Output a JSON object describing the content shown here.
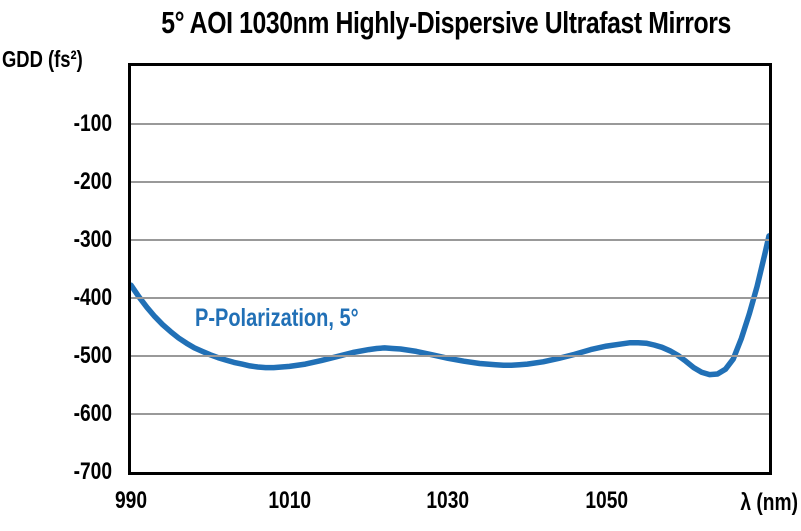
{
  "title": "5° AOI 1030nm Highly-Dispersive Ultrafast Mirrors",
  "y_axis_label": "GDD (fs²)",
  "x_axis_label": "λ (nm)",
  "series_label": "P-Polarization, 5°",
  "colors": {
    "curve": "#2170b6",
    "legend_text": "#2170b6",
    "gridline": "#999999",
    "axis_border": "#000000",
    "text": "#000000",
    "background": "#ffffff"
  },
  "chart_data": {
    "type": "line",
    "title": "5° AOI 1030nm Highly-Dispersive Ultrafast Mirrors",
    "xlabel": "λ (nm)",
    "ylabel": "GDD (fs²)",
    "xlim": [
      990,
      1070.5
    ],
    "ylim": [
      -700,
      0
    ],
    "x_ticks": [
      990,
      1010,
      1030,
      1050
    ],
    "y_ticks": [
      -100,
      -200,
      -300,
      -400,
      -500,
      -600,
      -700
    ],
    "grid": "horizontal-only",
    "legend_position": "inline-annotation",
    "series": [
      {
        "name": "P-Polarization, 5°",
        "points": [
          [
            990,
            -378
          ],
          [
            991,
            -398
          ],
          [
            992,
            -416
          ],
          [
            993,
            -432
          ],
          [
            994,
            -446
          ],
          [
            995,
            -458
          ],
          [
            996,
            -469
          ],
          [
            997,
            -478
          ],
          [
            998,
            -486
          ],
          [
            999,
            -492
          ],
          [
            1000,
            -498
          ],
          [
            1001,
            -503
          ],
          [
            1002,
            -507
          ],
          [
            1003,
            -511
          ],
          [
            1004,
            -514
          ],
          [
            1005,
            -517
          ],
          [
            1006,
            -519
          ],
          [
            1007,
            -520
          ],
          [
            1008,
            -520
          ],
          [
            1009,
            -519
          ],
          [
            1010,
            -518
          ],
          [
            1012,
            -514
          ],
          [
            1014,
            -508
          ],
          [
            1016,
            -501
          ],
          [
            1018,
            -494
          ],
          [
            1020,
            -489
          ],
          [
            1021,
            -487
          ],
          [
            1022,
            -486
          ],
          [
            1023,
            -487
          ],
          [
            1024,
            -488
          ],
          [
            1026,
            -492
          ],
          [
            1028,
            -498
          ],
          [
            1030,
            -504
          ],
          [
            1032,
            -509
          ],
          [
            1034,
            -513
          ],
          [
            1036,
            -515
          ],
          [
            1037,
            -516
          ],
          [
            1038,
            -516
          ],
          [
            1039,
            -515
          ],
          [
            1040,
            -514
          ],
          [
            1042,
            -510
          ],
          [
            1044,
            -504
          ],
          [
            1046,
            -497
          ],
          [
            1048,
            -489
          ],
          [
            1050,
            -483
          ],
          [
            1052,
            -479
          ],
          [
            1053,
            -477
          ],
          [
            1054,
            -477
          ],
          [
            1055,
            -478
          ],
          [
            1056,
            -481
          ],
          [
            1057,
            -485
          ],
          [
            1058,
            -491
          ],
          [
            1059,
            -499
          ],
          [
            1060,
            -509
          ],
          [
            1061,
            -520
          ],
          [
            1062,
            -528
          ],
          [
            1063,
            -532
          ],
          [
            1064,
            -531
          ],
          [
            1065,
            -523
          ],
          [
            1066,
            -505
          ],
          [
            1067,
            -470
          ],
          [
            1068,
            -428
          ],
          [
            1069,
            -380
          ],
          [
            1070,
            -323
          ],
          [
            1070.5,
            -293
          ]
        ]
      }
    ]
  }
}
